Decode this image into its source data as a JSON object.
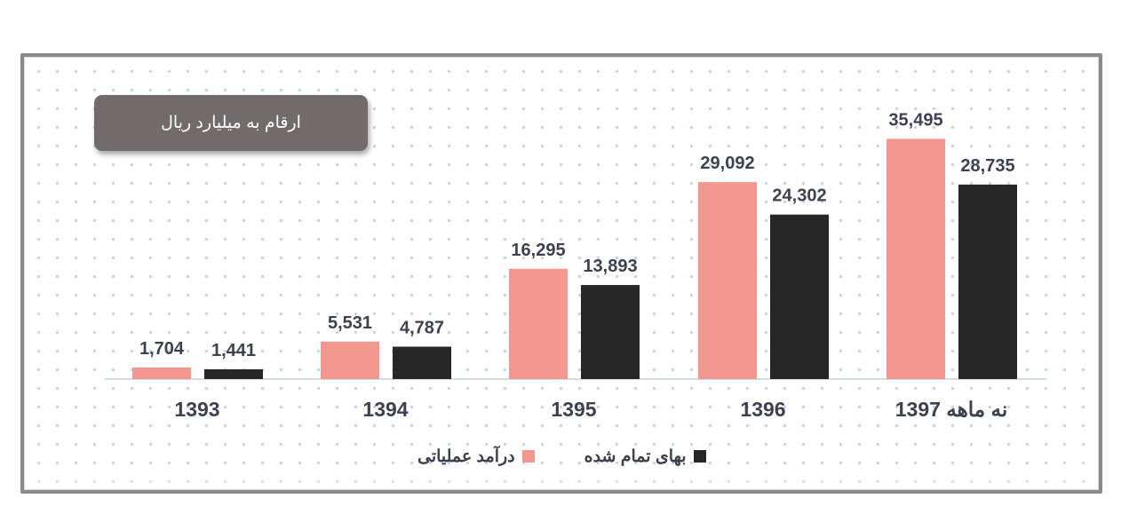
{
  "unit_note": "ارقام به میلیارد ریال",
  "colors": {
    "revenue": "#f4978e",
    "cost": "#262626",
    "label": "#3d4150"
  },
  "legend": {
    "revenue_label": "درآمد عملیاتی",
    "cost_label": "بهای تمام شده"
  },
  "chart_data": {
    "type": "bar",
    "categories": [
      "1393",
      "1394",
      "1395",
      "1396",
      "نه ماهه 1397"
    ],
    "series": [
      {
        "name": "درآمد عملیاتی",
        "values": [
          1704,
          5531,
          16295,
          29092,
          35495
        ],
        "labels": [
          "1,704",
          "5,531",
          "16,295",
          "29,092",
          "35,495"
        ]
      },
      {
        "name": "بهای تمام شده",
        "values": [
          1441,
          4787,
          13893,
          24302,
          28735
        ],
        "labels": [
          "1,441",
          "4,787",
          "13,893",
          "24,302",
          "28,735"
        ]
      }
    ],
    "ylim": [
      0,
      40000
    ],
    "grid": false,
    "legend_position": "bottom"
  }
}
